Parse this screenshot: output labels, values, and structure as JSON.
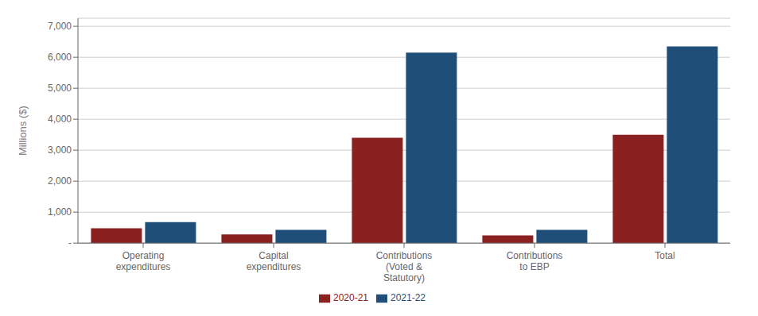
{
  "chart_data": {
    "type": "bar",
    "categories": [
      "Operating\nexpenditures",
      "Capital\nexpenditures",
      "Contributions\n(Voted &\nStatutory)",
      "Contributions\nto EBP",
      "Total"
    ],
    "series": [
      {
        "name": "2020-21",
        "color": "#8B2020",
        "values": [
          480,
          280,
          3400,
          250,
          3500
        ]
      },
      {
        "name": "2021-22",
        "color": "#1F4E79",
        "values": [
          680,
          430,
          6150,
          430,
          6350
        ]
      }
    ],
    "ylabel": "Millions ($)",
    "ylim": [
      0,
      7260
    ],
    "yticks": [
      {
        "value": 0,
        "label": "-"
      },
      {
        "value": 1000,
        "label": "1,000"
      },
      {
        "value": 2000,
        "label": "2,000"
      },
      {
        "value": 3000,
        "label": "3,000"
      },
      {
        "value": 4000,
        "label": "4,000"
      },
      {
        "value": 5000,
        "label": "5,000"
      },
      {
        "value": 6000,
        "label": "6,000"
      },
      {
        "value": 7000,
        "label": "7,000"
      }
    ],
    "grid": true,
    "legend": "bottom"
  }
}
